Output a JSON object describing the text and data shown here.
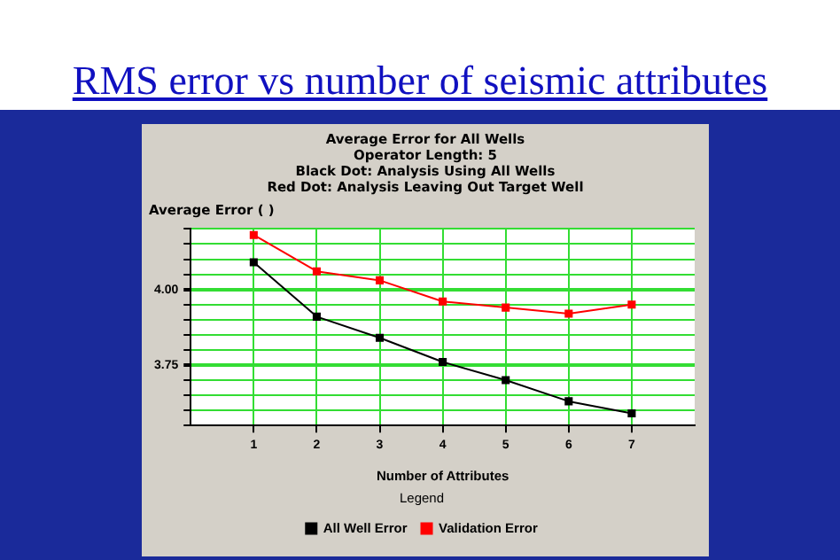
{
  "chart_data": {
    "type": "line",
    "title": "RMS error vs number of seismic attributes",
    "subtitle": "Average Error for All Wells",
    "annotations": [
      "Operator Length: 5",
      "Black Dot: Analysis Using All Wells",
      "Red Dot: Analysis Leaving Out Target Well"
    ],
    "xlabel": "Number of Attributes",
    "ylabel": "Average Error ( )",
    "legend_title": "Legend",
    "x": [
      1,
      2,
      3,
      4,
      5,
      6,
      7
    ],
    "series": [
      {
        "name": "All Well Error",
        "color": "#000000",
        "values": [
          4.09,
          3.91,
          3.84,
          3.76,
          3.7,
          3.63,
          3.59
        ]
      },
      {
        "name": "Validation Error",
        "color": "#ff0000",
        "values": [
          4.18,
          4.06,
          4.03,
          3.96,
          3.94,
          3.92,
          3.95
        ]
      }
    ],
    "xlim": [
      0,
      8
    ],
    "xticks": [
      1,
      2,
      3,
      4,
      5,
      6,
      7
    ],
    "ylim": [
      3.55,
      4.2
    ],
    "yticks": [
      {
        "value": 3.55,
        "label": null
      },
      {
        "value": 3.6,
        "label": null
      },
      {
        "value": 3.65,
        "label": null
      },
      {
        "value": 3.7,
        "label": null
      },
      {
        "value": 3.75,
        "label": "3.75"
      },
      {
        "value": 3.8,
        "label": null
      },
      {
        "value": 3.85,
        "label": null
      },
      {
        "value": 3.9,
        "label": null
      },
      {
        "value": 3.95,
        "label": null
      },
      {
        "value": 4.0,
        "label": "4.00"
      },
      {
        "value": 4.05,
        "label": null
      },
      {
        "value": 4.1,
        "label": null
      },
      {
        "value": 4.15,
        "label": null
      },
      {
        "value": 4.2,
        "label": null
      }
    ],
    "grid": true,
    "legend": "bottom",
    "marker": "square",
    "line_style": "solid"
  }
}
